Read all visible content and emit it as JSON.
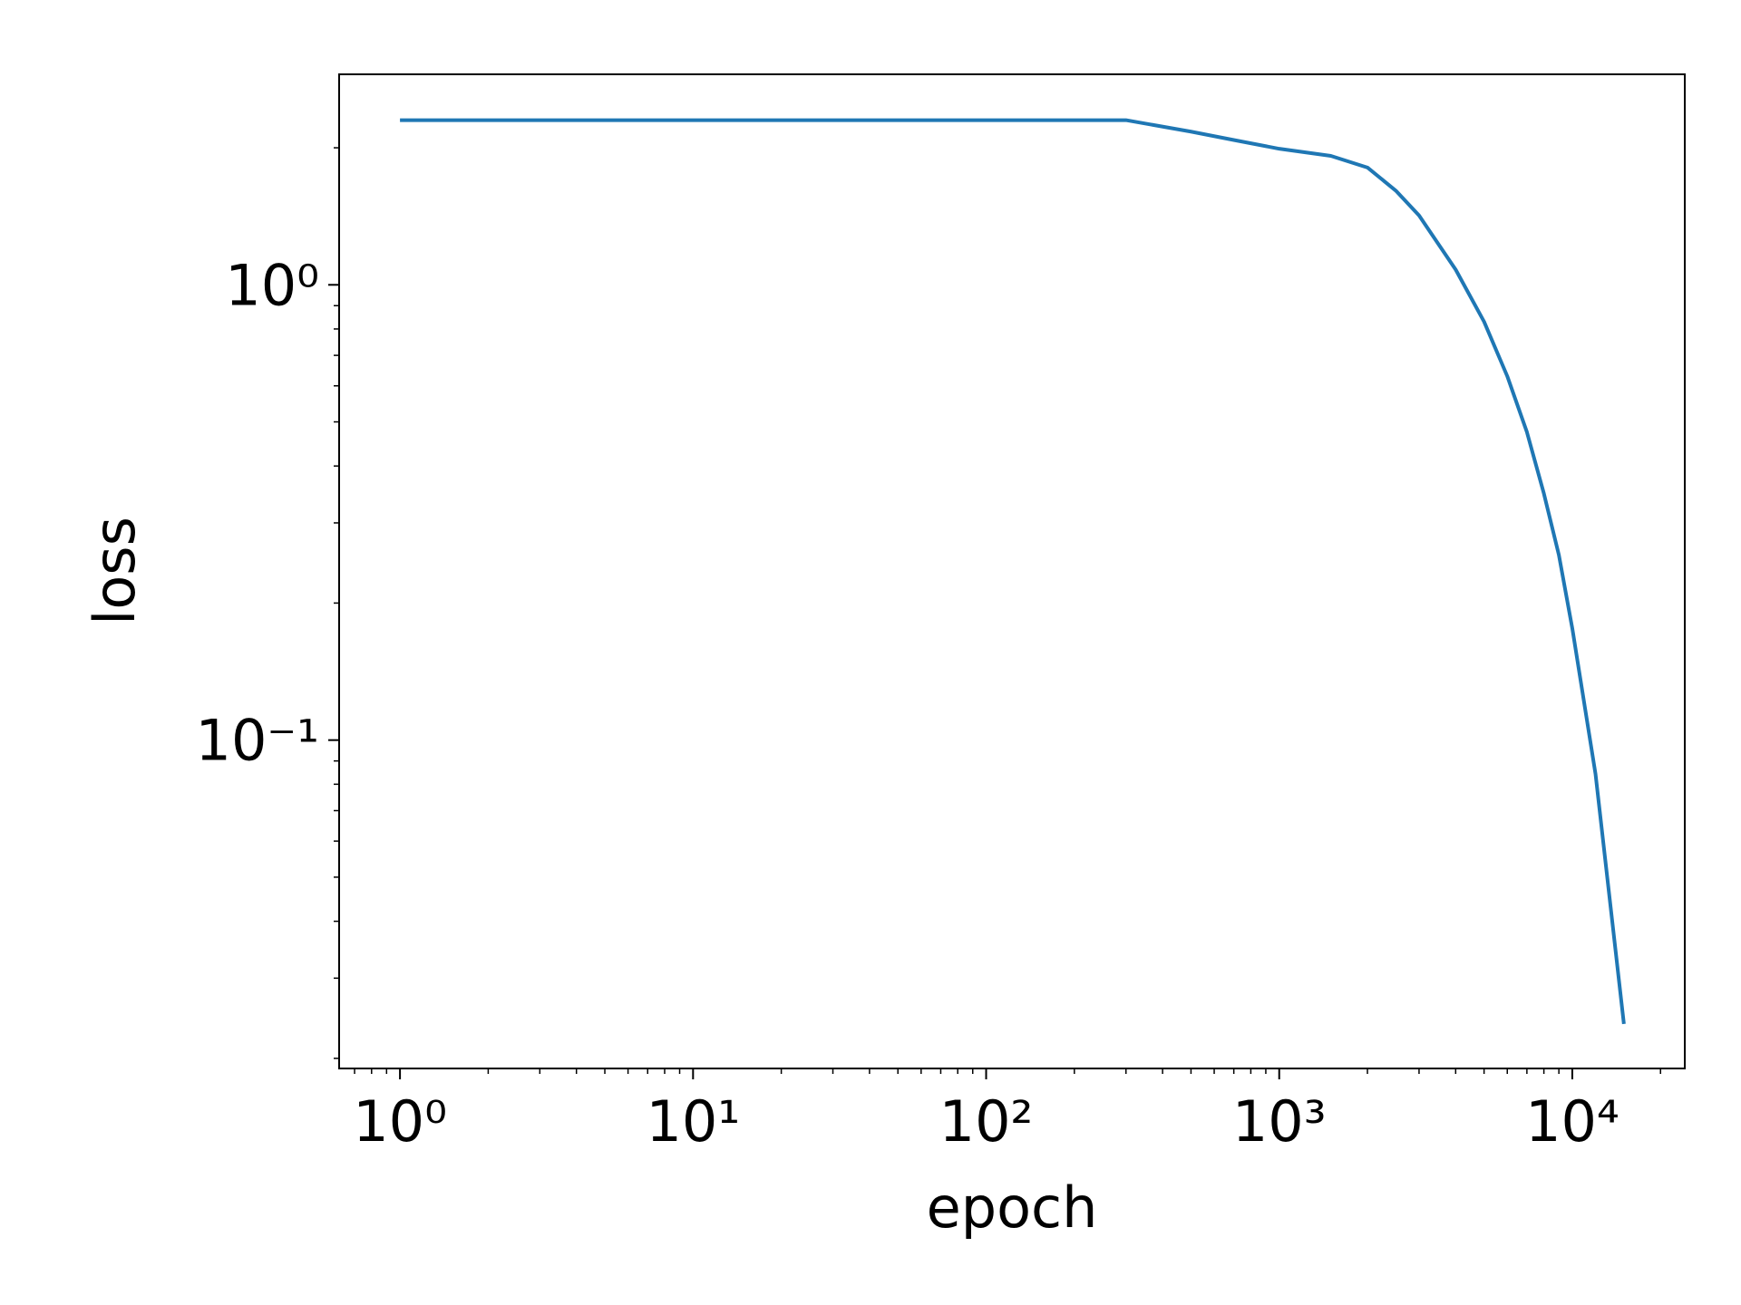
{
  "chart_data": {
    "type": "line",
    "x_label": "epoch",
    "y_label": "loss",
    "x": [
      1,
      100,
      250,
      300,
      500,
      700,
      1000,
      1500,
      2000,
      2500,
      3000,
      4000,
      5000,
      6000,
      7000,
      8000,
      9000,
      10000,
      12000,
      15000
    ],
    "series": [
      {
        "color": "#1f77b4",
        "values": [
          2.3,
          2.3,
          2.3,
          2.3,
          2.17,
          2.08,
          1.99,
          1.92,
          1.81,
          1.61,
          1.42,
          1.08,
          0.83,
          0.63,
          0.475,
          0.348,
          0.255,
          0.176,
          0.0843,
          0.0238
        ]
      }
    ],
    "x_log": true,
    "y_log": true,
    "xlim": [
      0.62,
      24200
    ],
    "ylim": [
      0.019,
      2.9
    ],
    "xticks": [
      {
        "value": 1,
        "label": "10⁰"
      },
      {
        "value": 10,
        "label": "10¹"
      },
      {
        "value": 100,
        "label": "10²"
      },
      {
        "value": 1000,
        "label": "10³"
      },
      {
        "value": 10000,
        "label": "10⁴"
      }
    ],
    "yticks": [
      {
        "value": 0.1,
        "label": "10⁻¹"
      },
      {
        "value": 1,
        "label": "10⁰"
      }
    ],
    "x_minor_ticks": [
      0.7,
      0.8,
      0.9,
      2,
      3,
      4,
      5,
      6,
      7,
      8,
      9,
      20,
      30,
      40,
      50,
      60,
      70,
      80,
      90,
      200,
      300,
      400,
      500,
      600,
      700,
      800,
      900,
      2000,
      3000,
      4000,
      5000,
      6000,
      7000,
      8000,
      9000,
      20000
    ],
    "y_minor_ticks": [
      0.02,
      0.03,
      0.04,
      0.05,
      0.06,
      0.07,
      0.08,
      0.09,
      0.2,
      0.3,
      0.4,
      0.5,
      0.6,
      0.7,
      0.8,
      0.9,
      2
    ],
    "grid": false
  }
}
